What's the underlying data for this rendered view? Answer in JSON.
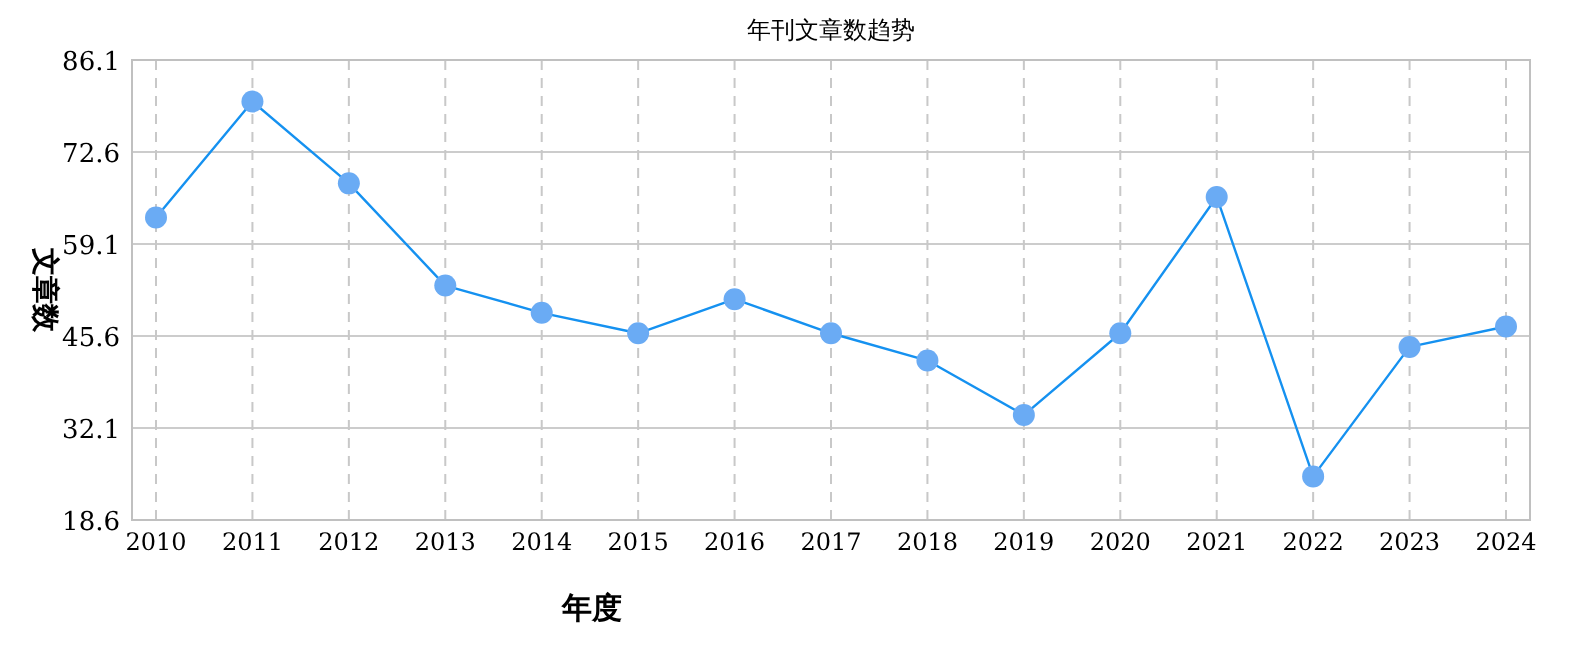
{
  "chart_data": {
    "type": "line",
    "title": "年刊文章数趋势",
    "xlabel": "年度",
    "ylabel": "文章数",
    "categories": [
      "2010",
      "2011",
      "2012",
      "2013",
      "2014",
      "2015",
      "2016",
      "2017",
      "2018",
      "2019",
      "2020",
      "2021",
      "2022",
      "2023",
      "2024"
    ],
    "series": [
      {
        "color": "#1591f0",
        "values": [
          63,
          80,
          68,
          53,
          49,
          46,
          51,
          46,
          42,
          34,
          46,
          66,
          25,
          44,
          47
        ]
      }
    ],
    "ylim": [
      18.6,
      86.1
    ],
    "yticks": [
      18.6,
      32.1,
      45.6,
      59.1,
      72.6,
      86.1
    ],
    "grid": true,
    "marker": "circle",
    "line_style": "solid"
  }
}
